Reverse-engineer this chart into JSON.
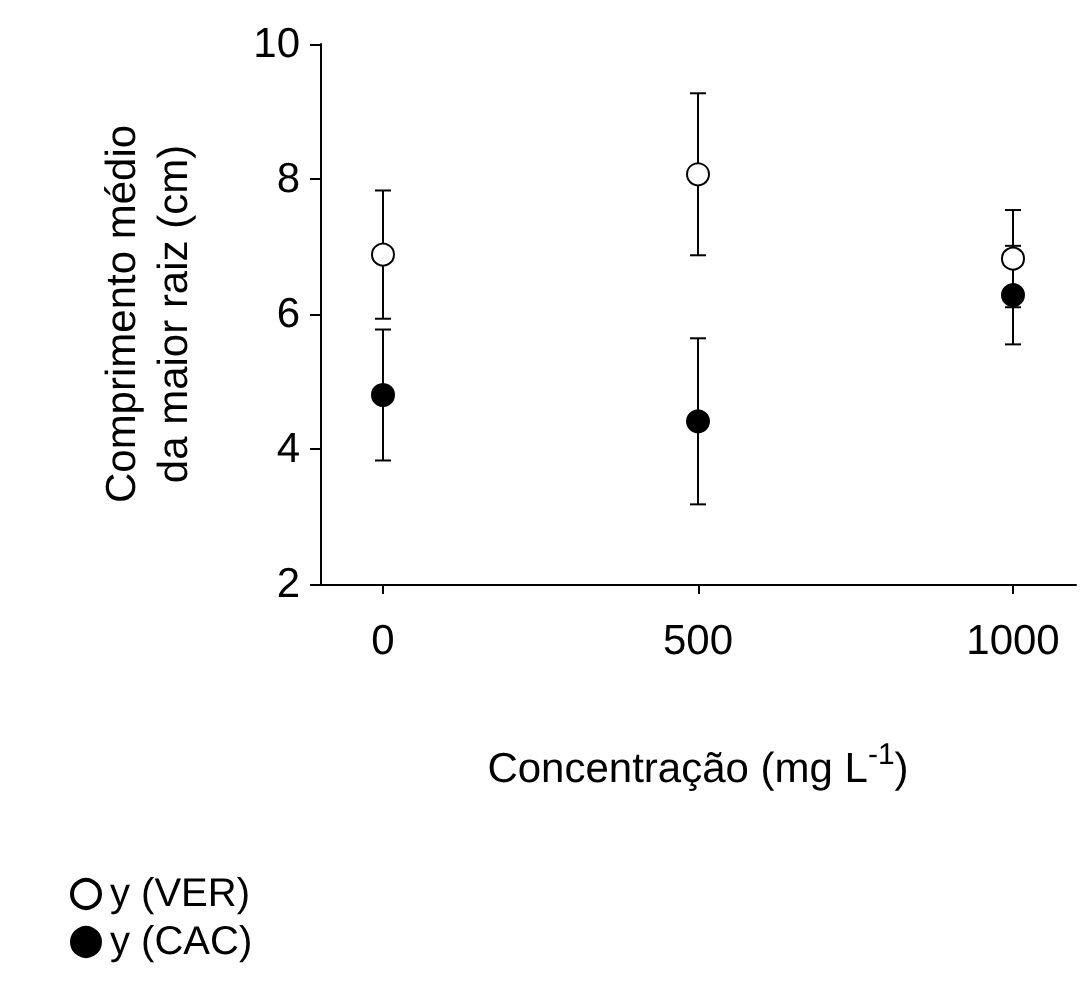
{
  "chart_data": {
    "type": "scatter",
    "xlabel": "Concentração (mg L$^{-1}$)",
    "ylabel": "Comprimento médio\nda maior raiz (cm)",
    "x": [
      0,
      500,
      1000
    ],
    "series": [
      {
        "name": "y (VER)",
        "color": "#ffffff",
        "values": [
          6.88,
          8.07,
          6.82
        ],
        "errors": [
          0.95,
          1.2,
          0.72
        ]
      },
      {
        "name": "y (CAC)",
        "color": "#000000",
        "values": [
          4.8,
          4.41,
          6.28
        ],
        "errors": [
          0.97,
          1.23,
          0.73
        ]
      }
    ],
    "xlim": [
      -100,
      1100
    ],
    "xticks": [
      0,
      500,
      1000
    ],
    "ylim": [
      2,
      10
    ],
    "yticks": [
      2,
      4,
      6,
      8,
      10
    ],
    "grid": false,
    "legend": "bottom left",
    "marker": "circle"
  }
}
